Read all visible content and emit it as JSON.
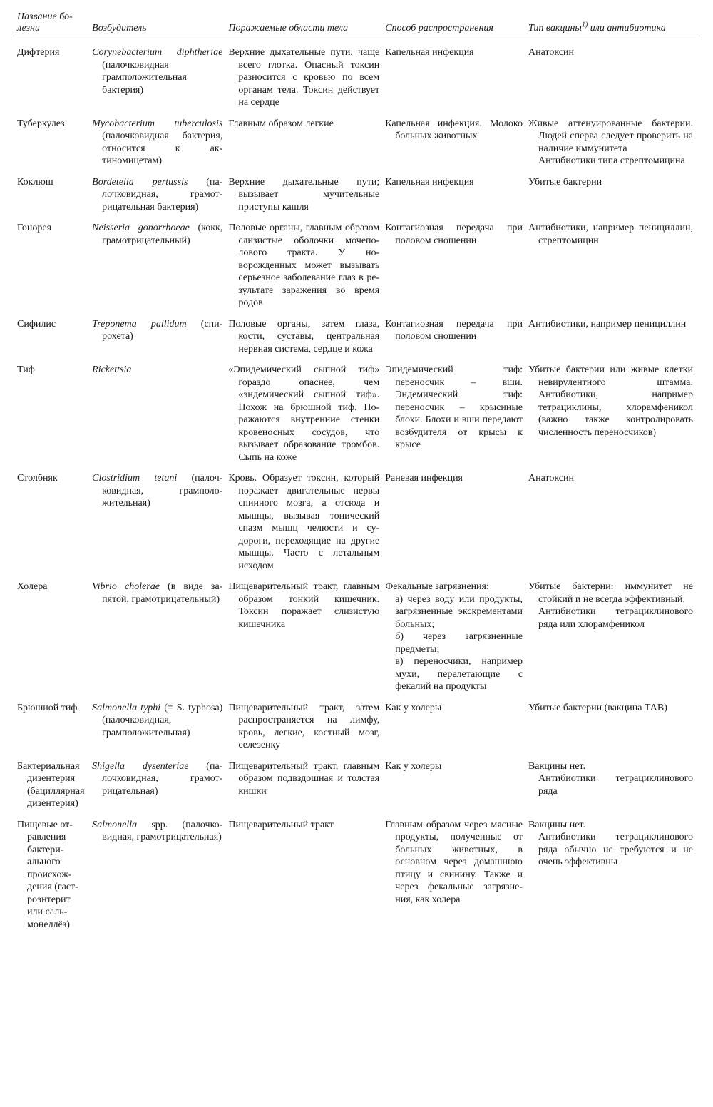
{
  "columns": {
    "c1": "Название бо­лезни",
    "c2": "Возбудитель",
    "c3": "Поражаемые области тела",
    "c4": "Способ распространения",
    "c5_pre": "Тип вакцины",
    "c5_sup": "1)",
    "c5_post": " или антибиотика"
  },
  "col_widths": [
    "11%",
    "20%",
    "23%",
    "21%",
    "25%"
  ],
  "rows": [
    {
      "disease": "Дифтерия",
      "pathogen_em": "Corynebacterium diphthe­riae",
      "pathogen_rest": " (палочковидная грамположительная бактерия)",
      "areas": "Верхние дыхательные пути, чаще всего глотка. Опасный токсин разносится с кровью по всем органам тела. Токсин действует на сердце",
      "spread": "Капельная инфекция",
      "vaccine": "Анатоксин"
    },
    {
      "disease": "Туберкулез",
      "pathogen_em": "Mycobacterium tuberculo­sis",
      "pathogen_rest": " (палочковидная бак­терия, относится к ак­тиномицетам)",
      "areas": "Главным образом лег­кие",
      "spread": "Капельная инфекция. Молоко больных животных",
      "vaccine": "Живые аттенуированные бак­терии. Людей сперва следует проверить на наличие имму­нитета\nАнтибиотики типа стрептоми­цина"
    },
    {
      "disease": "Коклюш",
      "pathogen_em": "Bordetella pertussis",
      "pathogen_rest": " (па­лочковидная, грамот­рицательная бактерия)",
      "areas": "Верхние дыхательные пути; вызывает мучи­тельные приступы каш­ля",
      "spread": "Капельная инфекция",
      "vaccine": "Убитые бактерии"
    },
    {
      "disease": "Гонорея",
      "pathogen_em": "Neisseria gonorrhoeae",
      "pathogen_rest": " (кокк, грамотрицатель­ный)",
      "areas": "Половые органы, глав­ным образом слизис­тые оболочки мочепо­лового тракта. У но­ворожденных может вызывать серьезное за­болевание глаз в ре­зультате заражения во время родов",
      "spread": "Контагиозная пере­дача при половом сношении",
      "vaccine": "Антибиотики, например пени­циллин, стрептомицин"
    },
    {
      "disease": "Сифилис",
      "pathogen_em": "Treponema pallidum",
      "pathogen_rest": " (спи­рохета)",
      "areas": "Половые органы, затем глаза, кости, суставы, центральная нервная система, сердце и ко­жа",
      "spread": "Контагиозная переда­ча при половом сношении",
      "vaccine": "Антибиотики, например пени­циллин"
    },
    {
      "disease": "Тиф",
      "pathogen_em": "Rickettsia",
      "pathogen_rest": "",
      "areas": "«Эпидемический сыпной тиф» гораздо опаснее, чем «эндемический сыпной тиф». Похож на брюшной тиф. По­ражаются внутренние стенки кровеносных сосудов, что вызывает образование тромбов. Сыпь на коже",
      "spread": "Эпидемический тиф: переносчик – вши. Эндемический тиф: переносчик – крыси­ные блохи. Блохи и вши передают возбудителя от крысы к крысе",
      "vaccine": "Убитые бактерии или живые клетки невирулентного штамма. Антибиотики, на­пример тетрациклины, хлор­амфеникол (важно также контролировать численность переносчиков)"
    },
    {
      "disease": "Столбняк",
      "pathogen_em": "Clostridium tetani",
      "pathogen_rest": " (палоч­ковидная, грамполо­жительная)",
      "areas": "Кровь. Образует токсин, который поражает дви­гательные нервы спин­ного мозга, а отсюда и мышцы, вызывая тонический спазм мышц челюсти и су­дороги, переходящие на другие мышцы. Ча­сто с летальным исхо­дом",
      "spread": "Раневая инфекция",
      "vaccine": "Анатоксин"
    },
    {
      "disease": "Холера",
      "pathogen_em": "Vibrio cholerae",
      "pathogen_rest": " (в виде за­пятой, грамотрицатель­ный)",
      "areas": "Пищеварительный тракт, главным образом тон­кий кишечник. Токсин поражает слизистую кишечника",
      "spread": "Фекальные загрязне­ния:\nа) через воду или продукты, загряз­ненные экскремен­тами больных;\nб) через загрязненные предметы;\nв) переносчики, напри­мер мухи, переле­тающие с фекалий на продукты",
      "vaccine": "Убитые бактерии: иммунитет не стойкий и не всегда эф­фективный.\nАнтибиотики тетрациклино­вого ряда или хлорамфени­кол"
    },
    {
      "disease": "Брюшной тиф",
      "pathogen_em": "Salmonella typhi",
      "pathogen_rest": " (= S. ty­phosa) (палочковидная, грамположительная)",
      "areas": "Пищеварительный тракт, затем распространяет­ся на лимфу, кровь, легкие, костный мозг, селезенку",
      "spread": "Как у холеры",
      "vaccine": "Убитые бактерии (вакцина ТАВ)"
    },
    {
      "disease": "Бактериаль­ная дизен­терия (ба­циллярная дизентерия)",
      "pathogen_em": "Shigella dysenteriae",
      "pathogen_rest": " (па­лочковидная, грамот­рицательная)",
      "areas": "Пищеварительный тракт, главным образом под­вздошная и толстая кишки",
      "spread": "Как у холеры",
      "vaccine": "Вакцины нет.\nАнтибиотики тетрациклино­вого ряда"
    },
    {
      "disease": "Пищевые от­равления бактери­ального происхож­дения (гаст­роэнтерит или саль­монеллёз)",
      "pathogen_em": "Salmonella",
      "pathogen_rest": " spp. (палочко­видная, грамотрица­тельная)",
      "areas": "Пищеварительный тракт",
      "spread": "Главным образом через мясные про­дукты, полученные от больных живот­ных, в основном через домашнюю птицу и свинину. Также и через фе­кальные загрязне­ния, как холера",
      "vaccine": "Вакцины нет.\nАнтибиотики тетрациклиново­го ряда обычно не требуют­ся и не очень эффективны"
    }
  ]
}
